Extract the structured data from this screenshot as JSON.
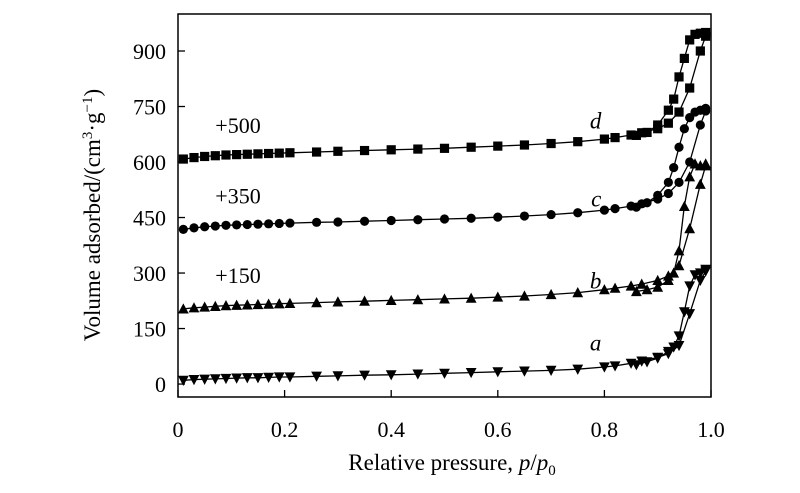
{
  "chart_data": {
    "type": "scatter",
    "xlabel": "Relative pressure, p/p0",
    "ylabel": "Volume adsorbed/(cm3·g-1)",
    "xlim": [
      0,
      1.0
    ],
    "ylim": [
      -35,
      1000
    ],
    "xticks": [
      0,
      0.2,
      0.4,
      0.6,
      0.8,
      1.0
    ],
    "xtick_labels": [
      "0",
      "0.2",
      "0.4",
      "0.6",
      "0.8",
      "1.0"
    ],
    "yticks": [
      0,
      150,
      300,
      450,
      600,
      750,
      900
    ],
    "ytick_labels": [
      "0",
      "150",
      "300",
      "450",
      "600",
      "750",
      "900"
    ],
    "series": [
      {
        "name": "a",
        "offset_label": "",
        "marker": "triangle-down",
        "label_at": [
          0.8,
          90
        ],
        "adsorption": {
          "x": [
            0.01,
            0.03,
            0.05,
            0.07,
            0.09,
            0.11,
            0.13,
            0.15,
            0.17,
            0.19,
            0.21,
            0.26,
            0.3,
            0.35,
            0.4,
            0.45,
            0.5,
            0.55,
            0.6,
            0.65,
            0.7,
            0.75,
            0.8,
            0.82,
            0.85,
            0.87,
            0.9,
            0.92,
            0.94,
            0.96,
            0.98,
            0.99
          ],
          "y": [
            10,
            12,
            13,
            14,
            15,
            16,
            17,
            17,
            18,
            19,
            19,
            21,
            22,
            24,
            25,
            27,
            29,
            31,
            33,
            35,
            37,
            40,
            46,
            49,
            56,
            62,
            72,
            82,
            104,
            190,
            280,
            305
          ]
        },
        "desorption": {
          "x": [
            0.99,
            0.98,
            0.97,
            0.96,
            0.95,
            0.94,
            0.93,
            0.92,
            0.9,
            0.88,
            0.86
          ],
          "y": [
            310,
            300,
            295,
            265,
            195,
            130,
            100,
            88,
            70,
            60,
            52
          ]
        }
      },
      {
        "name": "b",
        "offset_label": "+150",
        "marker": "triangle-up",
        "label_at": [
          0.8,
          258
        ],
        "adsorption": {
          "x": [
            0.01,
            0.03,
            0.05,
            0.07,
            0.09,
            0.11,
            0.13,
            0.15,
            0.17,
            0.19,
            0.21,
            0.26,
            0.3,
            0.35,
            0.4,
            0.45,
            0.5,
            0.55,
            0.6,
            0.65,
            0.7,
            0.75,
            0.8,
            0.82,
            0.85,
            0.87,
            0.9,
            0.92,
            0.94,
            0.96,
            0.98,
            0.99
          ],
          "y": [
            203,
            206,
            208,
            210,
            212,
            213,
            214,
            215,
            216,
            217,
            218,
            220,
            222,
            224,
            226,
            228,
            230,
            232,
            235,
            238,
            242,
            247,
            255,
            259,
            265,
            270,
            280,
            292,
            320,
            420,
            540,
            590
          ]
        },
        "desorption": {
          "x": [
            0.99,
            0.98,
            0.97,
            0.96,
            0.95,
            0.94,
            0.93,
            0.92,
            0.9,
            0.88,
            0.86
          ],
          "y": [
            595,
            590,
            595,
            560,
            480,
            360,
            300,
            280,
            262,
            255,
            250
          ]
        }
      },
      {
        "name": "c",
        "offset_label": "+350",
        "marker": "circle",
        "label_at": [
          0.8,
          480
        ],
        "adsorption": {
          "x": [
            0.01,
            0.03,
            0.05,
            0.07,
            0.09,
            0.11,
            0.13,
            0.15,
            0.17,
            0.19,
            0.21,
            0.26,
            0.3,
            0.35,
            0.4,
            0.45,
            0.5,
            0.55,
            0.6,
            0.65,
            0.7,
            0.75,
            0.8,
            0.82,
            0.85,
            0.87,
            0.9,
            0.92,
            0.94,
            0.96,
            0.98,
            0.99
          ],
          "y": [
            418,
            422,
            425,
            427,
            429,
            430,
            431,
            432,
            433,
            434,
            435,
            437,
            438,
            440,
            442,
            444,
            446,
            448,
            451,
            454,
            458,
            463,
            470,
            474,
            481,
            487,
            500,
            515,
            545,
            600,
            700,
            738
          ]
        },
        "desorption": {
          "x": [
            0.99,
            0.98,
            0.97,
            0.96,
            0.95,
            0.94,
            0.93,
            0.92,
            0.9,
            0.88,
            0.86
          ],
          "y": [
            745,
            740,
            735,
            720,
            690,
            640,
            585,
            545,
            510,
            490,
            478
          ]
        }
      },
      {
        "name": "d",
        "offset_label": "+500",
        "marker": "square",
        "label_at": [
          0.8,
          690
        ],
        "adsorption": {
          "x": [
            0.01,
            0.03,
            0.05,
            0.07,
            0.09,
            0.11,
            0.13,
            0.15,
            0.17,
            0.19,
            0.21,
            0.26,
            0.3,
            0.35,
            0.4,
            0.45,
            0.5,
            0.55,
            0.6,
            0.65,
            0.7,
            0.75,
            0.8,
            0.82,
            0.85,
            0.87,
            0.9,
            0.92,
            0.94,
            0.96,
            0.98,
            0.99
          ],
          "y": [
            608,
            612,
            615,
            617,
            619,
            620,
            621,
            622,
            623,
            624,
            625,
            627,
            629,
            631,
            633,
            635,
            637,
            640,
            643,
            646,
            650,
            655,
            662,
            666,
            673,
            679,
            690,
            705,
            735,
            800,
            900,
            940
          ]
        },
        "desorption": {
          "x": [
            0.99,
            0.98,
            0.97,
            0.96,
            0.95,
            0.94,
            0.93,
            0.92,
            0.9,
            0.88,
            0.86
          ],
          "y": [
            950,
            948,
            945,
            930,
            880,
            830,
            770,
            740,
            700,
            680,
            672
          ]
        }
      }
    ]
  }
}
